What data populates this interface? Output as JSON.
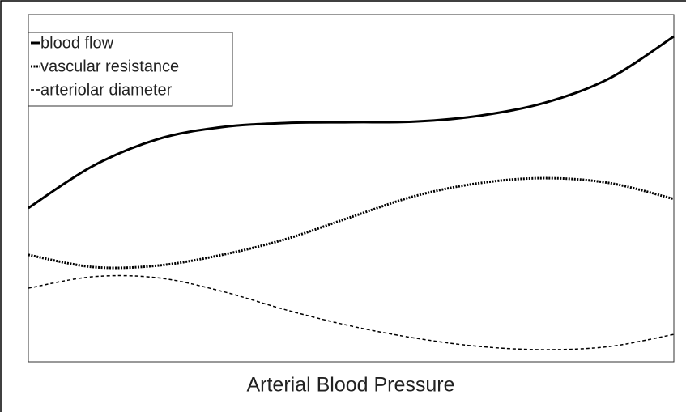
{
  "chart_data": {
    "type": "line",
    "xlabel": "Arterial Blood Pressure",
    "x": [
      0,
      1,
      2,
      3,
      4,
      5,
      6,
      7,
      8,
      9,
      10
    ],
    "xlim": [
      0,
      10
    ],
    "ylim": [
      0,
      100
    ],
    "legend": "upper left",
    "series": [
      {
        "name": "blood flow",
        "color": "#000000",
        "line_style": "solid",
        "values": [
          44.3,
          56.4,
          64.1,
          67.6,
          68.8,
          69.0,
          69.2,
          70.9,
          74.6,
          81.6,
          93.7
        ]
      },
      {
        "name": "vascular resistance",
        "color": "#000000",
        "line_style": "dotted",
        "values": [
          30.8,
          27.3,
          27.7,
          30.8,
          35.4,
          41.7,
          47.8,
          51.5,
          52.9,
          51.5,
          46.9
        ]
      },
      {
        "name": "arteriolar diameter",
        "color": "#000000",
        "line_style": "dashed",
        "values": [
          21.2,
          24.5,
          24.2,
          20.3,
          14.9,
          10.3,
          6.8,
          4.4,
          3.5,
          4.4,
          7.9
        ]
      }
    ]
  }
}
